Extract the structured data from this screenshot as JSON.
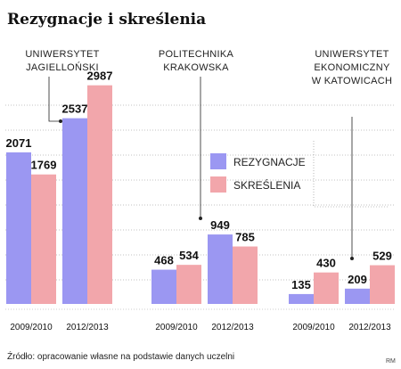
{
  "chart_data": {
    "type": "bar",
    "title": "Rezygnacje i skreślenia",
    "ylim": [
      0,
      3300
    ],
    "grid": "dotted-horizontal",
    "groups": [
      {
        "label": [
          "UNIWERSYTET",
          "JAGIELLOŃSKI"
        ],
        "categories": [
          "2009/2010",
          "2012/2013"
        ],
        "rezygnacje": [
          2071,
          2537
        ],
        "skreslenia": [
          1769,
          2987
        ]
      },
      {
        "label": [
          "POLITECHNIKA",
          "KRAKOWSKA"
        ],
        "categories": [
          "2009/2010",
          "2012/2013"
        ],
        "rezygnacje": [
          468,
          949
        ],
        "skreslenia": [
          534,
          785
        ]
      },
      {
        "label": [
          "UNIWERSYTET",
          "EKONOMICZNY",
          "W KATOWICACH"
        ],
        "categories": [
          "2009/2010",
          "2012/2013"
        ],
        "rezygnacje": [
          135,
          209
        ],
        "skreslenia": [
          430,
          529
        ]
      }
    ],
    "series": [
      {
        "name": "REZYGNACJE",
        "color": "#9b97f2"
      },
      {
        "name": "SKREŚLENIA",
        "color": "#f2a6ab"
      }
    ],
    "legend_position": "center-right"
  },
  "source": "Źródło: opracowanie własne na podstawie danych uczelni",
  "credit": "RM"
}
